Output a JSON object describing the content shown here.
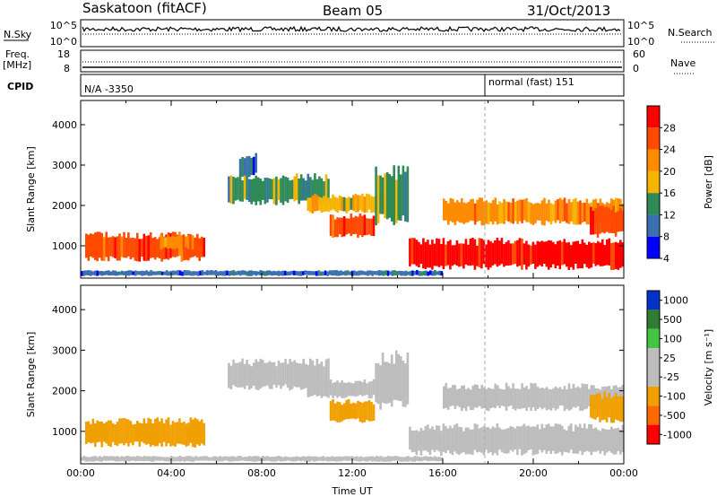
{
  "header": {
    "station": "Saskatoon (fitACF)",
    "beam": "Beam 05",
    "date": "31/Oct/2013"
  },
  "strips": {
    "nsky_label": "N.Sky",
    "nsky_ticks": [
      "10^5",
      "10^0"
    ],
    "nsearch_label": "N.Search",
    "nsearch_ticks": [
      "10^5",
      "10^0"
    ],
    "freq_label": "Freq.",
    "freq_unit": "[MHz]",
    "freq_ticks": [
      "18",
      "8"
    ],
    "nave_label": "Nave",
    "nave_ticks": [
      "60",
      "0"
    ],
    "cpid_label": "CPID",
    "cpid_left": "N/A -3350",
    "cpid_right": "normal (fast) 151"
  },
  "chart_data": [
    {
      "type": "heatmap",
      "name": "power",
      "ylabel": "Slant Range [km]",
      "ylim": [
        200,
        4600
      ],
      "yticks": [
        1000,
        2000,
        3000,
        4000
      ],
      "xlim": [
        0,
        24
      ],
      "colorbar": {
        "label": "Power [dB]",
        "ticks": [
          "28",
          "24",
          "20",
          "16",
          "12",
          "8",
          "4"
        ],
        "colors": [
          "#ff0000",
          "#ff4a00",
          "#ff8c00",
          "#f5b400",
          "#2e8b57",
          "#3a6fb0",
          "#0000ff"
        ]
      },
      "regions": [
        {
          "start": 0.2,
          "end": 5.5,
          "low": 600,
          "high": 1350,
          "level": 24
        },
        {
          "start": 3.5,
          "end": 5.0,
          "low": 900,
          "high": 1300,
          "level": 20
        },
        {
          "start": 6.5,
          "end": 11.0,
          "low": 2000,
          "high": 2800,
          "level": 10
        },
        {
          "start": 7.0,
          "end": 7.8,
          "low": 2700,
          "high": 3300,
          "level": 6
        },
        {
          "start": 10.0,
          "end": 13.5,
          "low": 1800,
          "high": 2300,
          "level": 14
        },
        {
          "start": 11.0,
          "end": 13.0,
          "low": 1200,
          "high": 1800,
          "level": 24
        },
        {
          "start": 13.0,
          "end": 14.5,
          "low": 1500,
          "high": 3000,
          "level": 12
        },
        {
          "start": 14.5,
          "end": 24.0,
          "low": 400,
          "high": 1200,
          "level": 28
        },
        {
          "start": 16.0,
          "end": 24.0,
          "low": 1500,
          "high": 2200,
          "level": 20
        },
        {
          "start": 22.5,
          "end": 24.0,
          "low": 1200,
          "high": 2000,
          "level": 22
        },
        {
          "start": 0.0,
          "end": 16.0,
          "low": 250,
          "high": 400,
          "level": 8
        }
      ]
    },
    {
      "type": "heatmap",
      "name": "velocity",
      "ylabel": "Slant Range [km]",
      "xlabel": "Time UT",
      "ylim": [
        200,
        4600
      ],
      "yticks": [
        1000,
        2000,
        3000,
        4000
      ],
      "xlim": [
        0,
        24
      ],
      "xticks": [
        "00:00",
        "04:00",
        "08:00",
        "12:00",
        "16:00",
        "20:00",
        "00:00"
      ],
      "colorbar": {
        "label": "Velocity [m s⁻¹]",
        "ticks": [
          "1000",
          "500",
          "100",
          "25",
          "-25",
          "-100",
          "-500",
          "-1000"
        ],
        "colors": [
          "#0033cc",
          "#2e7d32",
          "#43c443",
          "#bdbdbd",
          "#bdbdbd",
          "#f0a000",
          "#ff6a00",
          "#ff0000"
        ]
      },
      "regions": [
        {
          "start": 0.2,
          "end": 5.5,
          "low": 600,
          "high": 1350,
          "level": -100
        },
        {
          "start": 6.5,
          "end": 11.0,
          "low": 2000,
          "high": 2800,
          "level": 0
        },
        {
          "start": 10.0,
          "end": 13.5,
          "low": 1800,
          "high": 2300,
          "level": 0
        },
        {
          "start": 11.0,
          "end": 13.0,
          "low": 1200,
          "high": 1800,
          "level": -300
        },
        {
          "start": 13.0,
          "end": 14.5,
          "low": 1500,
          "high": 3000,
          "level": 0
        },
        {
          "start": 14.5,
          "end": 24.0,
          "low": 400,
          "high": 1200,
          "level": 0
        },
        {
          "start": 16.0,
          "end": 24.0,
          "low": 1500,
          "high": 2200,
          "level": 0
        },
        {
          "start": 22.5,
          "end": 24.0,
          "low": 1200,
          "high": 2000,
          "level": -300
        },
        {
          "start": 0.0,
          "end": 16.0,
          "low": 250,
          "high": 400,
          "level": 50
        }
      ]
    }
  ]
}
